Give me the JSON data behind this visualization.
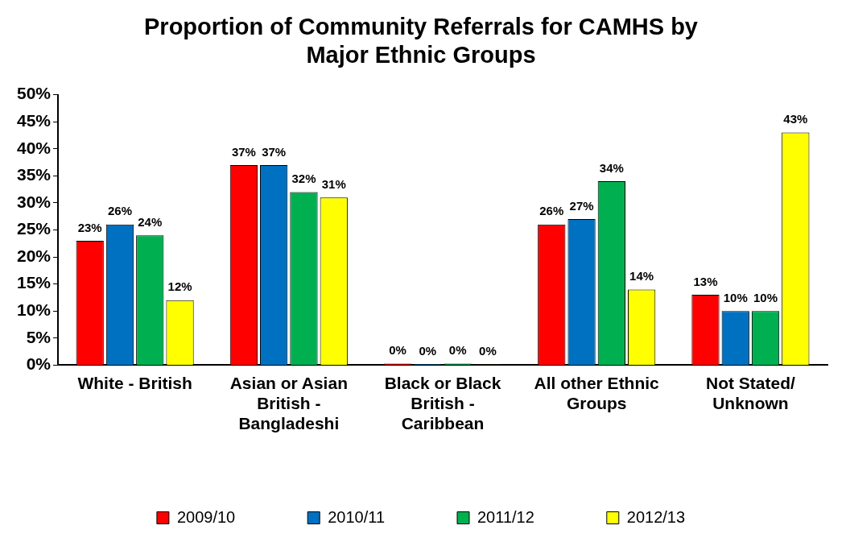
{
  "chart_data": {
    "type": "bar",
    "title": "Proportion of Community Referrals for CAMHS by Major Ethnic Groups",
    "categories": [
      "White - British",
      "Asian or Asian British - Bangladeshi",
      "Black or Black British - Caribbean",
      "All other Ethnic Groups",
      "Not Stated/ Unknown"
    ],
    "series": [
      {
        "name": "2009/10",
        "color": "#ff0000",
        "values": [
          23,
          37,
          0.3,
          26,
          13
        ],
        "value_labels": [
          "23%",
          "37%",
          "0%",
          "26%",
          "13%"
        ]
      },
      {
        "name": "2010/11",
        "color": "#0070c0",
        "values": [
          26,
          37,
          0.2,
          27,
          10
        ],
        "value_labels": [
          "26%",
          "37%",
          "0%",
          "27%",
          "10%"
        ]
      },
      {
        "name": "2011/12",
        "color": "#00b050",
        "values": [
          24,
          32,
          0.3,
          34,
          10
        ],
        "value_labels": [
          "24%",
          "32%",
          "0%",
          "34%",
          "10%"
        ]
      },
      {
        "name": "2012/13",
        "color": "#ffff00",
        "values": [
          12,
          31,
          0.1,
          14,
          43
        ],
        "value_labels": [
          "12%",
          "31%",
          "0%",
          "14%",
          "43%"
        ]
      }
    ],
    "ylim": [
      0,
      50
    ],
    "yticks": [
      {
        "value": 0,
        "label": "0%"
      },
      {
        "value": 5,
        "label": "5%"
      },
      {
        "value": 10,
        "label": "10%"
      },
      {
        "value": 15,
        "label": "15%"
      },
      {
        "value": 20,
        "label": "20%"
      },
      {
        "value": 25,
        "label": "25%"
      },
      {
        "value": 30,
        "label": "30%"
      },
      {
        "value": 35,
        "label": "35%"
      },
      {
        "value": 40,
        "label": "40%"
      },
      {
        "value": 45,
        "label": "45%"
      },
      {
        "value": 50,
        "label": "50%"
      }
    ],
    "grid": false,
    "legend": "bottom"
  }
}
